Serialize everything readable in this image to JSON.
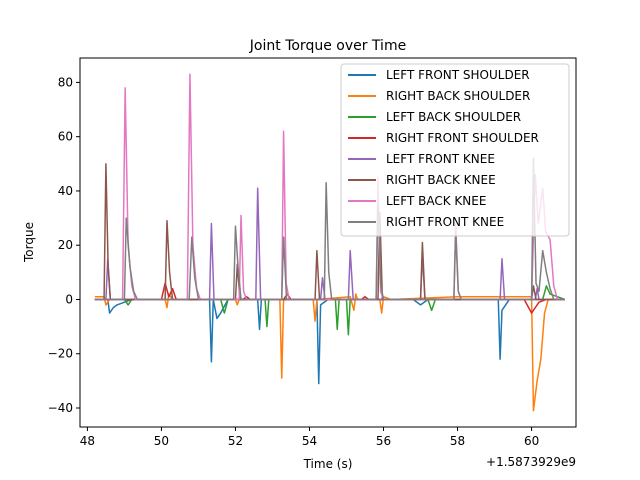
{
  "chart_data": {
    "type": "line",
    "title": "Joint Torque over Time",
    "xlabel": "Time (s)",
    "ylabel": "Torque",
    "x_offset_label": "+1.5873929e9",
    "xlim": [
      47.8,
      61.2
    ],
    "ylim": [
      -47,
      89
    ],
    "xticks": [
      48,
      50,
      52,
      54,
      56,
      58,
      60
    ],
    "yticks": [
      -40,
      -20,
      0,
      20,
      40,
      60,
      80
    ],
    "legend_position": "upper right",
    "grid": false,
    "series": [
      {
        "name": "LEFT FRONT SHOULDER",
        "color": "#1f77b4",
        "points": [
          [
            48.2,
            0
          ],
          [
            48.55,
            0
          ],
          [
            48.6,
            -5
          ],
          [
            48.7,
            -3
          ],
          [
            48.8,
            -2
          ],
          [
            49.2,
            0
          ],
          [
            51.3,
            0
          ],
          [
            51.35,
            -23
          ],
          [
            51.4,
            0
          ],
          [
            51.5,
            -7
          ],
          [
            51.6,
            -5
          ],
          [
            51.8,
            0
          ],
          [
            52.6,
            0
          ],
          [
            52.65,
            -11
          ],
          [
            52.7,
            0
          ],
          [
            54.2,
            0
          ],
          [
            54.25,
            -31
          ],
          [
            54.3,
            -2
          ],
          [
            54.5,
            0
          ],
          [
            56.8,
            0
          ],
          [
            57.0,
            -2
          ],
          [
            57.2,
            0
          ],
          [
            59.1,
            0
          ],
          [
            59.15,
            -22
          ],
          [
            59.2,
            -4
          ],
          [
            59.4,
            0
          ],
          [
            60.9,
            0
          ]
        ]
      },
      {
        "name": "RIGHT BACK SHOULDER",
        "color": "#ff7f0e",
        "points": [
          [
            48.2,
            1
          ],
          [
            48.45,
            1
          ],
          [
            48.5,
            -2
          ],
          [
            48.6,
            0
          ],
          [
            50.1,
            0
          ],
          [
            50.15,
            -3
          ],
          [
            50.2,
            2
          ],
          [
            50.3,
            0
          ],
          [
            52.0,
            0
          ],
          [
            52.05,
            -2
          ],
          [
            52.1,
            0
          ],
          [
            53.2,
            0
          ],
          [
            53.25,
            -29
          ],
          [
            53.3,
            0
          ],
          [
            54.1,
            0
          ],
          [
            54.15,
            -8
          ],
          [
            54.2,
            0
          ],
          [
            55.1,
            1
          ],
          [
            55.2,
            -4
          ],
          [
            55.25,
            2
          ],
          [
            55.3,
            0
          ],
          [
            55.9,
            0
          ],
          [
            55.95,
            -5
          ],
          [
            56.0,
            1
          ],
          [
            56.2,
            0
          ],
          [
            58.0,
            1
          ],
          [
            60.0,
            1
          ],
          [
            60.05,
            -41
          ],
          [
            60.15,
            -30
          ],
          [
            60.25,
            -22
          ],
          [
            60.35,
            -5
          ],
          [
            60.45,
            0
          ],
          [
            60.9,
            0
          ]
        ]
      },
      {
        "name": "LEFT BACK SHOULDER",
        "color": "#2ca02c",
        "points": [
          [
            48.2,
            0
          ],
          [
            49.0,
            0
          ],
          [
            49.1,
            -2
          ],
          [
            49.2,
            0
          ],
          [
            51.6,
            0
          ],
          [
            51.7,
            -5
          ],
          [
            51.8,
            0
          ],
          [
            52.8,
            0
          ],
          [
            52.85,
            -10
          ],
          [
            52.9,
            0
          ],
          [
            54.7,
            0
          ],
          [
            54.75,
            -11
          ],
          [
            54.8,
            0
          ],
          [
            55.0,
            0
          ],
          [
            55.05,
            -13
          ],
          [
            55.1,
            0
          ],
          [
            57.2,
            0
          ],
          [
            57.3,
            -4
          ],
          [
            57.4,
            0
          ],
          [
            60.3,
            0
          ],
          [
            60.4,
            5
          ],
          [
            60.5,
            2
          ],
          [
            60.9,
            0
          ]
        ]
      },
      {
        "name": "RIGHT FRONT SHOULDER",
        "color": "#d62728",
        "points": [
          [
            48.2,
            0
          ],
          [
            50.0,
            0
          ],
          [
            50.1,
            6
          ],
          [
            50.2,
            1
          ],
          [
            50.3,
            4
          ],
          [
            50.4,
            0
          ],
          [
            52.2,
            0
          ],
          [
            52.3,
            1
          ],
          [
            52.4,
            0
          ],
          [
            53.3,
            0
          ],
          [
            53.4,
            2
          ],
          [
            53.5,
            0
          ],
          [
            55.4,
            0
          ],
          [
            55.5,
            1
          ],
          [
            55.6,
            0
          ],
          [
            59.8,
            0
          ],
          [
            60.0,
            -5
          ],
          [
            60.1,
            -3
          ],
          [
            60.2,
            -1
          ],
          [
            60.4,
            0
          ],
          [
            60.9,
            0
          ]
        ]
      },
      {
        "name": "LEFT FRONT KNEE",
        "color": "#9467bd",
        "points": [
          [
            48.2,
            0
          ],
          [
            48.5,
            0
          ],
          [
            48.55,
            15
          ],
          [
            48.62,
            0
          ],
          [
            51.3,
            0
          ],
          [
            51.35,
            28
          ],
          [
            51.42,
            0
          ],
          [
            52.55,
            0
          ],
          [
            52.6,
            41
          ],
          [
            52.68,
            0
          ],
          [
            54.3,
            0
          ],
          [
            54.35,
            8
          ],
          [
            54.42,
            0
          ],
          [
            55.05,
            0
          ],
          [
            55.1,
            18
          ],
          [
            55.18,
            0
          ],
          [
            57.0,
            0
          ],
          [
            57.05,
            16
          ],
          [
            57.12,
            0
          ],
          [
            59.15,
            0
          ],
          [
            59.2,
            15
          ],
          [
            59.27,
            0
          ],
          [
            60.1,
            0
          ],
          [
            60.15,
            4
          ],
          [
            60.2,
            0
          ],
          [
            60.9,
            0
          ]
        ]
      },
      {
        "name": "RIGHT BACK KNEE",
        "color": "#8c564b",
        "points": [
          [
            48.2,
            0
          ],
          [
            48.45,
            0
          ],
          [
            48.5,
            50
          ],
          [
            48.56,
            12
          ],
          [
            48.62,
            0
          ],
          [
            50.1,
            0
          ],
          [
            50.15,
            29
          ],
          [
            50.22,
            10
          ],
          [
            50.3,
            0
          ],
          [
            52.0,
            0
          ],
          [
            52.05,
            13
          ],
          [
            52.12,
            0
          ],
          [
            54.15,
            0
          ],
          [
            54.2,
            18
          ],
          [
            54.27,
            0
          ],
          [
            55.85,
            0
          ],
          [
            55.9,
            32
          ],
          [
            55.97,
            0
          ],
          [
            57.0,
            0
          ],
          [
            57.05,
            21
          ],
          [
            57.12,
            0
          ],
          [
            60.0,
            0
          ],
          [
            60.05,
            5
          ],
          [
            60.12,
            0
          ],
          [
            60.9,
            0
          ]
        ]
      },
      {
        "name": "LEFT BACK KNEE",
        "color": "#e377c2",
        "points": [
          [
            48.2,
            0
          ],
          [
            48.95,
            0
          ],
          [
            49.02,
            78
          ],
          [
            49.1,
            20
          ],
          [
            49.2,
            5
          ],
          [
            49.3,
            0
          ],
          [
            50.7,
            0
          ],
          [
            50.77,
            83
          ],
          [
            50.85,
            20
          ],
          [
            50.95,
            4
          ],
          [
            51.05,
            0
          ],
          [
            52.1,
            0
          ],
          [
            52.15,
            31
          ],
          [
            52.22,
            3
          ],
          [
            52.3,
            0
          ],
          [
            53.25,
            0
          ],
          [
            53.3,
            62
          ],
          [
            53.37,
            6
          ],
          [
            53.45,
            0
          ],
          [
            55.8,
            0
          ],
          [
            55.85,
            45
          ],
          [
            55.92,
            3
          ],
          [
            56.0,
            0
          ],
          [
            57.9,
            0
          ],
          [
            57.95,
            28
          ],
          [
            58.02,
            3
          ],
          [
            58.1,
            0
          ],
          [
            60.0,
            0
          ],
          [
            60.1,
            46
          ],
          [
            60.18,
            28
          ],
          [
            60.3,
            41
          ],
          [
            60.38,
            25
          ],
          [
            60.5,
            22
          ],
          [
            60.6,
            5
          ],
          [
            60.7,
            0
          ],
          [
            60.9,
            0
          ]
        ]
      },
      {
        "name": "RIGHT FRONT KNEE",
        "color": "#7f7f7f",
        "points": [
          [
            48.2,
            0
          ],
          [
            49.0,
            0
          ],
          [
            49.05,
            30
          ],
          [
            49.15,
            12
          ],
          [
            49.25,
            3
          ],
          [
            49.35,
            0
          ],
          [
            50.75,
            0
          ],
          [
            50.82,
            23
          ],
          [
            50.9,
            8
          ],
          [
            51.0,
            0
          ],
          [
            51.95,
            0
          ],
          [
            52.0,
            27
          ],
          [
            52.07,
            12
          ],
          [
            52.15,
            0
          ],
          [
            53.25,
            0
          ],
          [
            53.3,
            23
          ],
          [
            53.38,
            0
          ],
          [
            54.4,
            0
          ],
          [
            54.45,
            43
          ],
          [
            54.52,
            10
          ],
          [
            54.6,
            0
          ],
          [
            55.8,
            0
          ],
          [
            55.85,
            35
          ],
          [
            55.93,
            5
          ],
          [
            56.0,
            0
          ],
          [
            57.9,
            0
          ],
          [
            57.95,
            25
          ],
          [
            58.02,
            3
          ],
          [
            58.1,
            0
          ],
          [
            60.0,
            0
          ],
          [
            60.05,
            52
          ],
          [
            60.12,
            6
          ],
          [
            60.2,
            3
          ],
          [
            60.3,
            18
          ],
          [
            60.4,
            10
          ],
          [
            60.5,
            4
          ],
          [
            60.6,
            0
          ],
          [
            60.9,
            0
          ]
        ]
      }
    ]
  }
}
